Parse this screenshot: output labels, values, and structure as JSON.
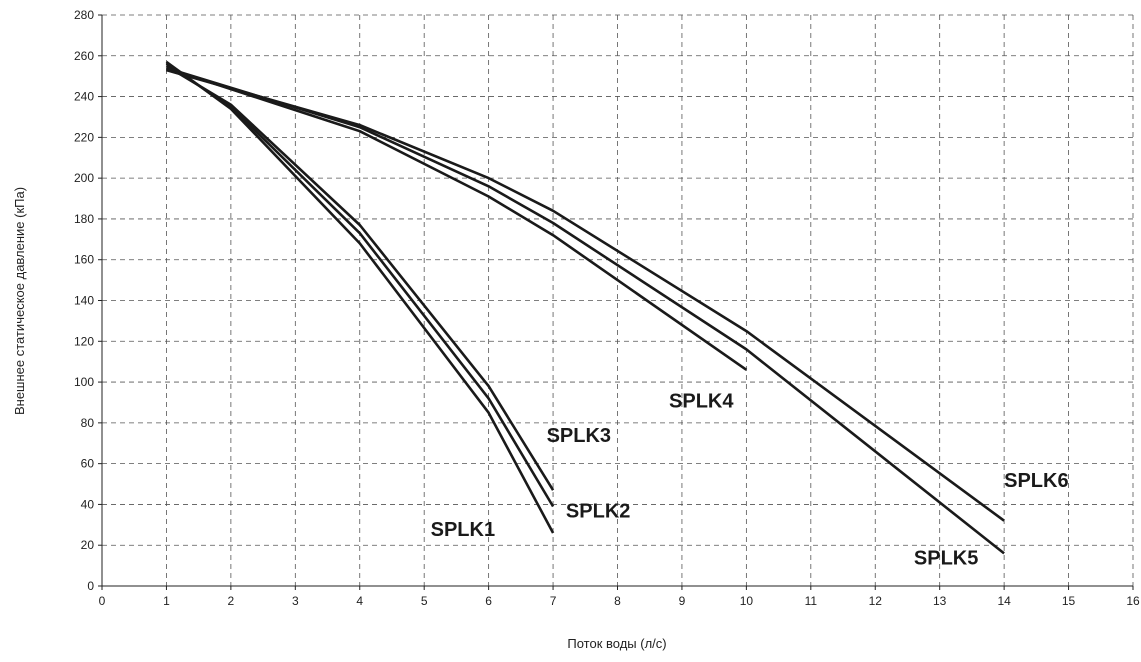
{
  "chart_data": {
    "type": "line",
    "title": "",
    "xlabel": "Поток воды (л/с)",
    "ylabel": "Внешнее статическое давление (кПа)",
    "xlim": [
      0,
      16
    ],
    "ylim": [
      0,
      280
    ],
    "xticks": [
      0,
      1,
      2,
      3,
      4,
      5,
      6,
      7,
      8,
      9,
      10,
      11,
      12,
      13,
      14,
      15,
      16
    ],
    "yticks": [
      0,
      20,
      40,
      60,
      80,
      100,
      120,
      140,
      160,
      180,
      200,
      220,
      240,
      260,
      280
    ],
    "grid": true,
    "series": [
      {
        "name": "SPLK1",
        "x": [
          1,
          2,
          4,
          6,
          7
        ],
        "y": [
          257,
          234,
          168,
          85,
          26
        ]
      },
      {
        "name": "SPLK2",
        "x": [
          1,
          2,
          4,
          6,
          7
        ],
        "y": [
          256,
          235,
          173,
          92,
          39
        ]
      },
      {
        "name": "SPLK3",
        "x": [
          1,
          2,
          4,
          6,
          7
        ],
        "y": [
          255,
          236,
          177,
          98,
          47
        ]
      },
      {
        "name": "SPLK4",
        "x": [
          1,
          4,
          6,
          7,
          10
        ],
        "y": [
          254,
          223,
          191,
          172,
          106
        ]
      },
      {
        "name": "SPLK5",
        "x": [
          1,
          4,
          6,
          7,
          10,
          14
        ],
        "y": [
          254,
          225,
          196,
          178,
          116,
          16
        ]
      },
      {
        "name": "SPLK6",
        "x": [
          1,
          4,
          6,
          7,
          10,
          14
        ],
        "y": [
          253,
          226,
          200,
          184,
          125,
          32
        ]
      }
    ],
    "labels": [
      {
        "text": "SPLK1",
        "x": 5.6,
        "y": 28
      },
      {
        "text": "SPLK2",
        "x": 7.7,
        "y": 37
      },
      {
        "text": "SPLK3",
        "x": 7.4,
        "y": 74
      },
      {
        "text": "SPLK4",
        "x": 9.3,
        "y": 91
      },
      {
        "text": "SPLK5",
        "x": 13.1,
        "y": 14
      },
      {
        "text": "SPLK6",
        "x": 14.5,
        "y": 52
      }
    ]
  }
}
